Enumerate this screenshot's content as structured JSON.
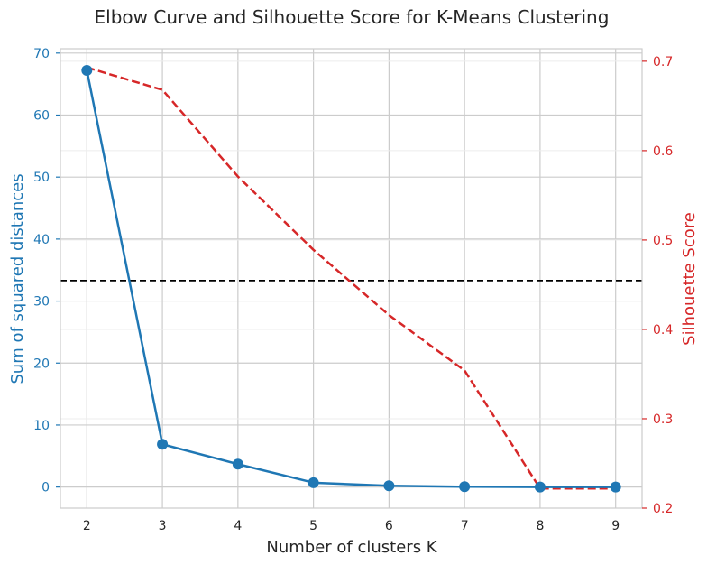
{
  "chart_data": {
    "type": "line",
    "title": "Elbow Curve and Silhouette Score for K-Means Clustering",
    "xlabel": "Number of clusters K",
    "x": [
      2,
      3,
      4,
      5,
      6,
      7,
      8,
      9
    ],
    "xlim": [
      1.65,
      9.35
    ],
    "grid": true,
    "left_axis": {
      "label": "Sum of squared distances",
      "color": "#1f77b4",
      "ylim": [
        -3.4,
        70.7
      ],
      "ticks": [
        0,
        10,
        20,
        30,
        40,
        50,
        60,
        70
      ]
    },
    "right_axis": {
      "label": "Silhouette Score",
      "color": "#d62728",
      "ylim": [
        0.2,
        0.714
      ],
      "ticks": [
        0.2,
        0.3,
        0.4,
        0.5,
        0.6,
        0.7
      ]
    },
    "series": [
      {
        "axis": "left",
        "color": "#1f77b4",
        "style": "solid",
        "markers": true,
        "values": [
          67.2,
          6.9,
          3.7,
          0.7,
          0.2,
          0.05,
          0.0,
          0.0
        ]
      },
      {
        "axis": "right",
        "color": "#d62728",
        "style": "dashed",
        "markers": false,
        "values": [
          0.693,
          0.668,
          0.571,
          0.489,
          0.416,
          0.354,
          0.222,
          0.222
        ]
      }
    ],
    "reference_lines": [
      {
        "axis": "left",
        "y": 33.3,
        "color": "#000000",
        "style": "dashed"
      }
    ]
  }
}
